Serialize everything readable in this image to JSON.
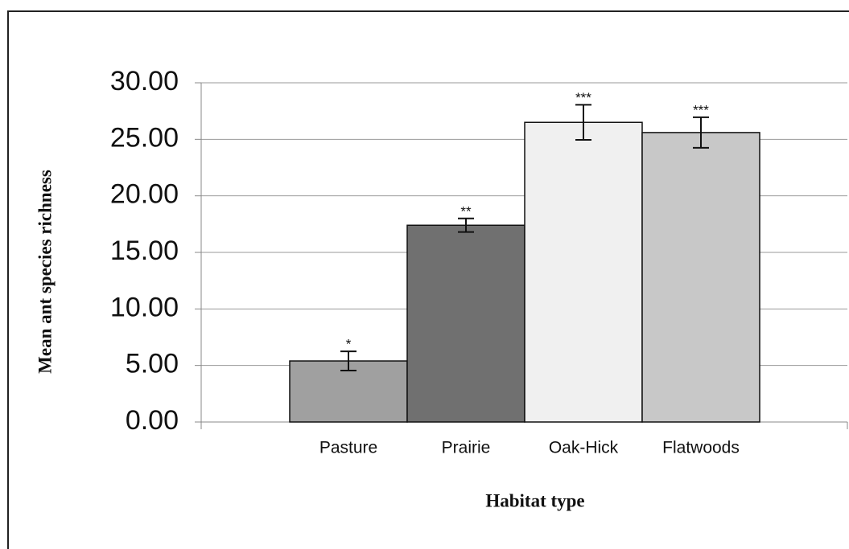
{
  "chart_data": {
    "type": "bar",
    "x_label": "Habitat type",
    "y_label": "Mean ant species richness",
    "categories": [
      "Pasture",
      "Prairie",
      "Oak-Hick",
      "Flatwoods"
    ],
    "values": [
      5.4,
      17.4,
      26.5,
      25.6
    ],
    "errors": [
      0.85,
      0.6,
      1.55,
      1.35
    ],
    "significance": [
      "*",
      "**",
      "***",
      "***"
    ],
    "colors": [
      "#a0a0a0",
      "#707070",
      "#f0f0f0",
      "#c8c8c8"
    ],
    "ylim": [
      0,
      30
    ],
    "yticks": [
      {
        "value": 0,
        "label": "0.00"
      },
      {
        "value": 5,
        "label": "5.00"
      },
      {
        "value": 10,
        "label": "10.00"
      },
      {
        "value": 15,
        "label": "15.00"
      },
      {
        "value": 20,
        "label": "20.00"
      },
      {
        "value": 25,
        "label": "25.00"
      },
      {
        "value": 30,
        "label": "30.00"
      }
    ],
    "grid": true
  }
}
